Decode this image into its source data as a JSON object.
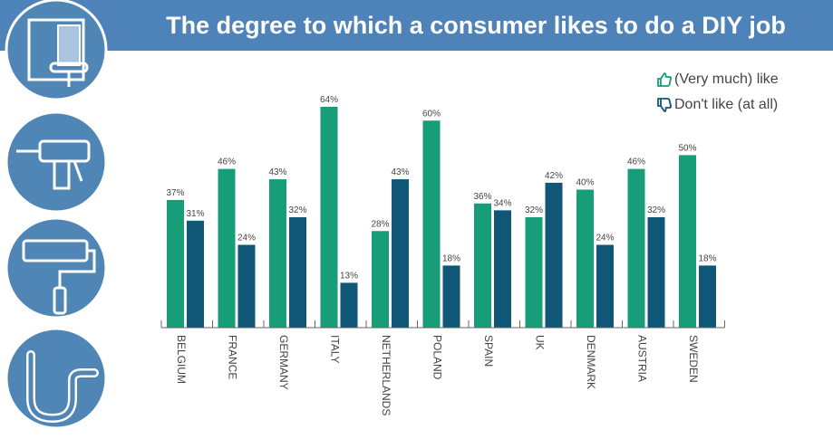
{
  "header": {
    "title": "The degree to which a consumer likes to do a DIY job"
  },
  "legend": {
    "like_label": "(Very much) like",
    "dislike_label": "Don't like (at all)"
  },
  "icons": [
    "wallpaper-roll-icon",
    "power-drill-icon",
    "paint-roller-icon",
    "sink-pipe-icon"
  ],
  "colors": {
    "like": "#179d77",
    "dislike": "#0f5677",
    "header": "#4d83b8",
    "icon_circle": "#4f86b6"
  },
  "chart_data": {
    "type": "bar",
    "title": "The degree to which a consumer likes to do a DIY job",
    "categories": [
      "BELGIUM",
      "FRANCE",
      "GERMANY",
      "ITALY",
      "NETHERLANDS",
      "POLAND",
      "SPAIN",
      "UK",
      "DENMARK",
      "AUSTRIA",
      "SWEDEN"
    ],
    "series": [
      {
        "name": "(Very much) like",
        "values": [
          37,
          46,
          43,
          64,
          28,
          60,
          36,
          32,
          40,
          46,
          50
        ]
      },
      {
        "name": "Don't like (at all)",
        "values": [
          31,
          24,
          32,
          13,
          43,
          18,
          34,
          42,
          24,
          32,
          18
        ]
      }
    ],
    "value_suffix": "%",
    "ylim": [
      0,
      70
    ],
    "grid": false,
    "legend_position": "top-right",
    "xlabel": "",
    "ylabel": ""
  }
}
